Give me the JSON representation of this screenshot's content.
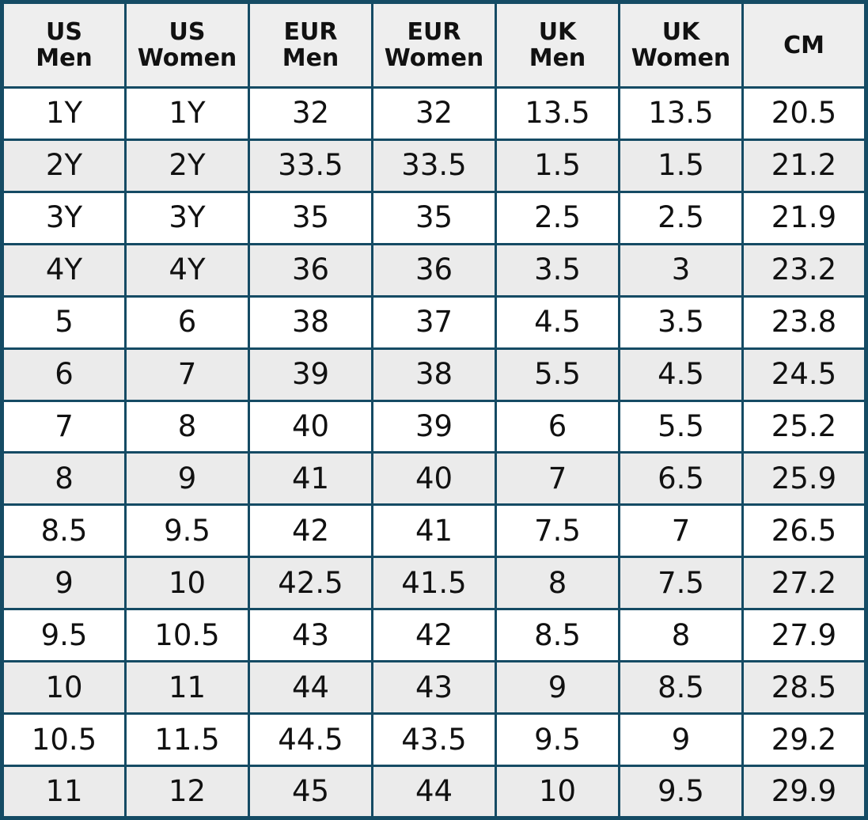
{
  "table": {
    "headers": [
      {
        "line1": "US",
        "line2": "Men"
      },
      {
        "line1": "US",
        "line2": "Women"
      },
      {
        "line1": "EUR",
        "line2": "Men"
      },
      {
        "line1": "EUR",
        "line2": "Women"
      },
      {
        "line1": "UK",
        "line2": "Men"
      },
      {
        "line1": "UK",
        "line2": "Women"
      },
      {
        "line1": "CM",
        "line2": ""
      }
    ],
    "rows": [
      [
        "1Y",
        "1Y",
        "32",
        "32",
        "13.5",
        "13.5",
        "20.5"
      ],
      [
        "2Y",
        "2Y",
        "33.5",
        "33.5",
        "1.5",
        "1.5",
        "21.2"
      ],
      [
        "3Y",
        "3Y",
        "35",
        "35",
        "2.5",
        "2.5",
        "21.9"
      ],
      [
        "4Y",
        "4Y",
        "36",
        "36",
        "3.5",
        "3",
        "23.2"
      ],
      [
        "5",
        "6",
        "38",
        "37",
        "4.5",
        "3.5",
        "23.8"
      ],
      [
        "6",
        "7",
        "39",
        "38",
        "5.5",
        "4.5",
        "24.5"
      ],
      [
        "7",
        "8",
        "40",
        "39",
        "6",
        "5.5",
        "25.2"
      ],
      [
        "8",
        "9",
        "41",
        "40",
        "7",
        "6.5",
        "25.9"
      ],
      [
        "8.5",
        "9.5",
        "42",
        "41",
        "7.5",
        "7",
        "26.5"
      ],
      [
        "9",
        "10",
        "42.5",
        "41.5",
        "8",
        "7.5",
        "27.2"
      ],
      [
        "9.5",
        "10.5",
        "43",
        "42",
        "8.5",
        "8",
        "27.9"
      ],
      [
        "10",
        "11",
        "44",
        "43",
        "9",
        "8.5",
        "28.5"
      ],
      [
        "10.5",
        "11.5",
        "44.5",
        "43.5",
        "9.5",
        "9",
        "29.2"
      ],
      [
        "11",
        "12",
        "45",
        "44",
        "10",
        "9.5",
        "29.9"
      ]
    ]
  },
  "colors": {
    "border": "#154b64",
    "header_bg": "#eeeeee",
    "stripe_bg": "#ebebeb",
    "text": "#111111"
  }
}
